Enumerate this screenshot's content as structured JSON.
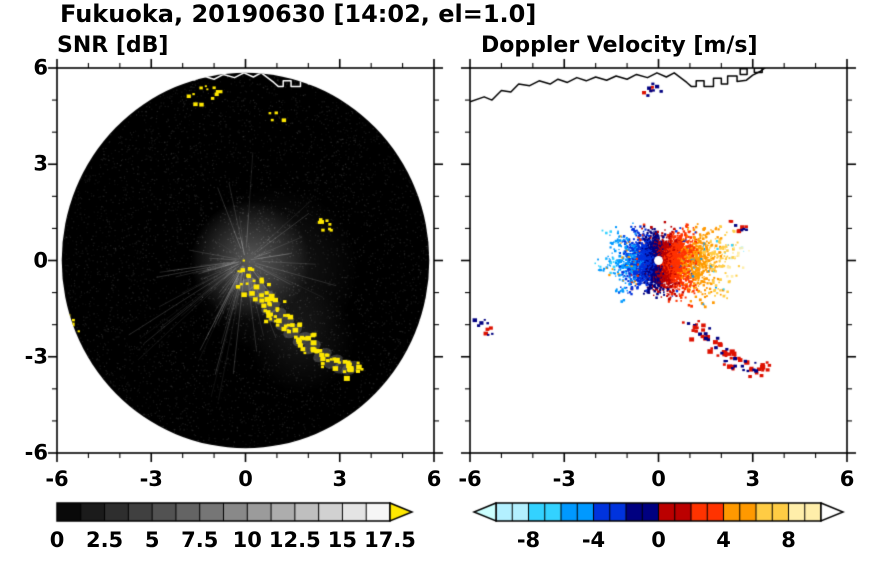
{
  "header": {
    "title": "Fukuoka, 20190630 [14:02, el=1.0]"
  },
  "coastline": {
    "points": [
      [
        -6.0,
        4.95
      ],
      [
        -5.55,
        5.1
      ],
      [
        -5.3,
        5.0
      ],
      [
        -5.0,
        5.3
      ],
      [
        -4.7,
        5.25
      ],
      [
        -4.45,
        5.5
      ],
      [
        -4.1,
        5.45
      ],
      [
        -3.8,
        5.6
      ],
      [
        -3.45,
        5.5
      ],
      [
        -3.2,
        5.65
      ],
      [
        -2.9,
        5.55
      ],
      [
        -2.6,
        5.7
      ],
      [
        -2.3,
        5.6
      ],
      [
        -2.0,
        5.72
      ],
      [
        -1.65,
        5.62
      ],
      [
        -1.35,
        5.75
      ],
      [
        -1.0,
        5.65
      ],
      [
        -0.7,
        5.8
      ],
      [
        -0.35,
        5.7
      ],
      [
        -0.05,
        5.85
      ],
      [
        0.25,
        5.72
      ],
      [
        0.5,
        5.85
      ],
      [
        0.7,
        5.7
      ],
      [
        0.9,
        5.55
      ],
      [
        1.05,
        5.42
      ],
      [
        1.2,
        5.42
      ],
      [
        1.2,
        5.6
      ],
      [
        1.45,
        5.6
      ],
      [
        1.45,
        5.42
      ],
      [
        1.75,
        5.42
      ],
      [
        1.75,
        5.68
      ],
      [
        2.0,
        5.68
      ],
      [
        2.0,
        5.5
      ],
      [
        2.2,
        5.5
      ],
      [
        2.2,
        5.75
      ],
      [
        2.5,
        5.75
      ],
      [
        2.5,
        5.58
      ],
      [
        2.8,
        5.62
      ],
      [
        3.0,
        5.78
      ],
      [
        3.25,
        5.9
      ],
      [
        3.45,
        6.05
      ]
    ],
    "islands": [
      [
        [
          2.6,
          5.8
        ],
        [
          2.82,
          5.8
        ],
        [
          2.82,
          5.98
        ],
        [
          2.6,
          5.98
        ]
      ],
      [
        [
          3.05,
          5.86
        ],
        [
          3.3,
          5.86
        ],
        [
          3.3,
          6.0
        ],
        [
          3.05,
          6.0
        ]
      ]
    ]
  },
  "chart_data": [
    {
      "type": "heatmap",
      "panel": "snr",
      "title": "SNR [dB]",
      "xlim": [
        -6,
        6
      ],
      "ylim": [
        -6,
        6
      ],
      "xtick_values": [
        -6,
        -3,
        0,
        3,
        6
      ],
      "xticks": [
        "-6",
        "-3",
        "0",
        "3",
        "6"
      ],
      "ytick_values": [
        6,
        3,
        0,
        -3,
        -6
      ],
      "yticks": [
        "6",
        "3",
        "0",
        "-3",
        "-6"
      ],
      "minor_tick_step": 1,
      "scan_circle": {
        "center": [
          0,
          0
        ],
        "radius": 5.85,
        "color": "#000000"
      },
      "coastline_color": "#ffffff",
      "high_snr_color": "#ffe800",
      "echo_arc": [
        [
          0.05,
          -0.75
        ],
        [
          0.35,
          -0.95
        ],
        [
          0.6,
          -1.15
        ],
        [
          0.8,
          -1.45
        ],
        [
          1.0,
          -1.7
        ],
        [
          1.25,
          -1.95
        ],
        [
          1.5,
          -2.2
        ],
        [
          1.8,
          -2.45
        ],
        [
          2.1,
          -2.7
        ],
        [
          2.45,
          -2.95
        ],
        [
          2.8,
          -3.15
        ],
        [
          3.1,
          -3.3
        ],
        [
          3.35,
          -3.35
        ]
      ],
      "clutter_patches": [
        [
          -0.15,
          -0.3
        ],
        [
          0.0,
          -0.12
        ],
        [
          2.4,
          1.25
        ],
        [
          2.55,
          1.08
        ],
        [
          -5.72,
          -1.75
        ],
        [
          -5.6,
          -2.05
        ],
        [
          -1.3,
          5.45
        ],
        [
          -1.05,
          5.2
        ],
        [
          -1.7,
          5.05
        ],
        [
          0.95,
          4.5
        ],
        [
          2.65,
          5.55
        ]
      ],
      "colorbar": {
        "min": 0,
        "max": 17.5,
        "tick_labels": [
          "0",
          "2.5",
          "5",
          "7.5",
          "10",
          "12.5",
          "15",
          "17.5"
        ],
        "tick_values": [
          0,
          2.5,
          5,
          7.5,
          10,
          12.5,
          15,
          17.5
        ],
        "minor_step": 1.25,
        "gradient": [
          "#000000",
          "#ffffff"
        ],
        "over_arrow_color": "#ffe800"
      }
    },
    {
      "type": "heatmap",
      "panel": "doppler",
      "title": "Doppler Velocity [m/s]",
      "xlim": [
        -6,
        6
      ],
      "ylim": [
        -6,
        6
      ],
      "xtick_values": [
        -6,
        -3,
        0,
        3,
        6
      ],
      "xticks": [
        "-6",
        "-3",
        "0",
        "3",
        "6"
      ],
      "minor_tick_step": 1,
      "coastline_color": "#000000",
      "velocity_fan": {
        "center": [
          0,
          0
        ],
        "reach_east": 2.6,
        "reach_west": 2.0,
        "reach_north_south": 1.0,
        "inner_hole_radius": 0.14,
        "negative_side": "west",
        "positive_side": "east"
      },
      "echo_arc": [
        [
          1.0,
          -1.95
        ],
        [
          1.3,
          -2.2
        ],
        [
          1.6,
          -2.5
        ],
        [
          1.9,
          -2.75
        ],
        [
          2.2,
          -3.0
        ],
        [
          2.55,
          -3.2
        ],
        [
          2.9,
          -3.35
        ],
        [
          3.2,
          -3.3
        ]
      ],
      "clutter_patches": [
        [
          2.45,
          1.2
        ],
        [
          2.6,
          1.05
        ],
        [
          -5.7,
          -1.8
        ],
        [
          -5.58,
          -2.1
        ],
        [
          -0.45,
          5.35
        ],
        [
          -0.18,
          5.5
        ]
      ],
      "echo_positive_color": "#dd1100",
      "echo_negative_color": "#000080",
      "colorbar": {
        "min": -10,
        "max": 10,
        "tick_labels": [
          "-8",
          "-4",
          "0",
          "4",
          "8"
        ],
        "tick_values": [
          -8,
          -4,
          0,
          4,
          8
        ],
        "minor_step": 1,
        "segment_colors": [
          "#b3f0ff",
          "#33d2ff",
          "#0099ff",
          "#0033dd",
          "#000080",
          "#bb0000",
          "#ff3300",
          "#ff9900",
          "#ffcc44",
          "#ffeeaa"
        ],
        "under_arrow_color": "#ccffff",
        "over_arrow_color": "#ffffff"
      }
    }
  ]
}
